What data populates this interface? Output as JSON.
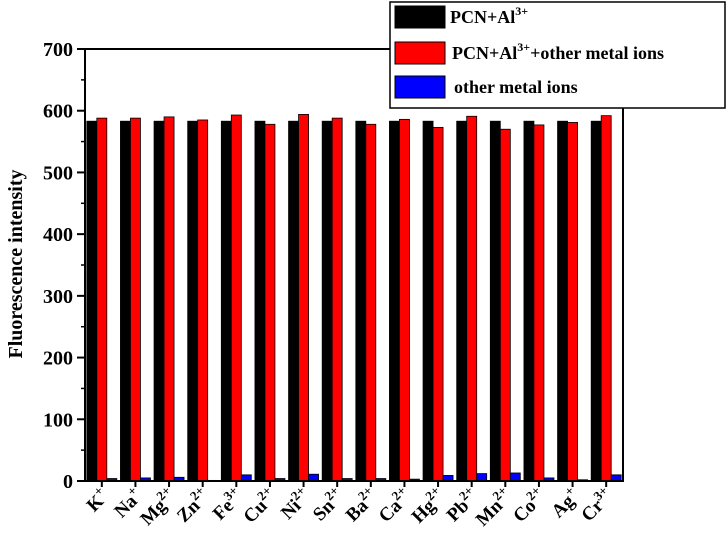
{
  "chart_data": {
    "type": "bar",
    "title": "",
    "xlabel": "",
    "ylabel": "Fluorescence intensity",
    "ylim": [
      0,
      700
    ],
    "yticks": [
      0,
      100,
      200,
      300,
      400,
      500,
      600,
      700
    ],
    "grid": false,
    "legend_position": "top-right",
    "categories": [
      {
        "base": "K",
        "sup": "+"
      },
      {
        "base": "Na",
        "sup": "+"
      },
      {
        "base": "Mg",
        "sup": "2+"
      },
      {
        "base": "Zn",
        "sup": "2+"
      },
      {
        "base": "Fe",
        "sup": "3+"
      },
      {
        "base": "Cu",
        "sup": "2+"
      },
      {
        "base": "Ni",
        "sup": "2+"
      },
      {
        "base": "Sn",
        "sup": "2+"
      },
      {
        "base": "Ba",
        "sup": "2+"
      },
      {
        "base": "Ca",
        "sup": "2+"
      },
      {
        "base": "Hg",
        "sup": "2+"
      },
      {
        "base": "Pb",
        "sup": "2+"
      },
      {
        "base": "Mn",
        "sup": "2+"
      },
      {
        "base": "Co",
        "sup": "2+"
      },
      {
        "base": "Ag",
        "sup": "+"
      },
      {
        "base": "Cr",
        "sup": "3+"
      }
    ],
    "series": [
      {
        "name": {
          "pre": "PCN+Al",
          "sup": "3+",
          "post": ""
        },
        "color": "#000000",
        "values": [
          583,
          583,
          583,
          583,
          583,
          583,
          583,
          583,
          583,
          583,
          583,
          583,
          583,
          583,
          583,
          583
        ]
      },
      {
        "name": {
          "pre": "PCN+Al",
          "sup": "3+",
          "post": "+other metal ions"
        },
        "color": "#ff0000",
        "values": [
          588,
          588,
          590,
          585,
          593,
          578,
          594,
          588,
          578,
          586,
          573,
          591,
          570,
          577,
          581,
          592
        ]
      },
      {
        "name": {
          "pre": "other metal ions",
          "sup": "",
          "post": ""
        },
        "color": "#0000ff",
        "values": [
          4,
          5,
          6,
          1,
          10,
          4,
          11,
          4,
          4,
          3,
          9,
          12,
          13,
          5,
          2,
          10
        ]
      }
    ]
  }
}
